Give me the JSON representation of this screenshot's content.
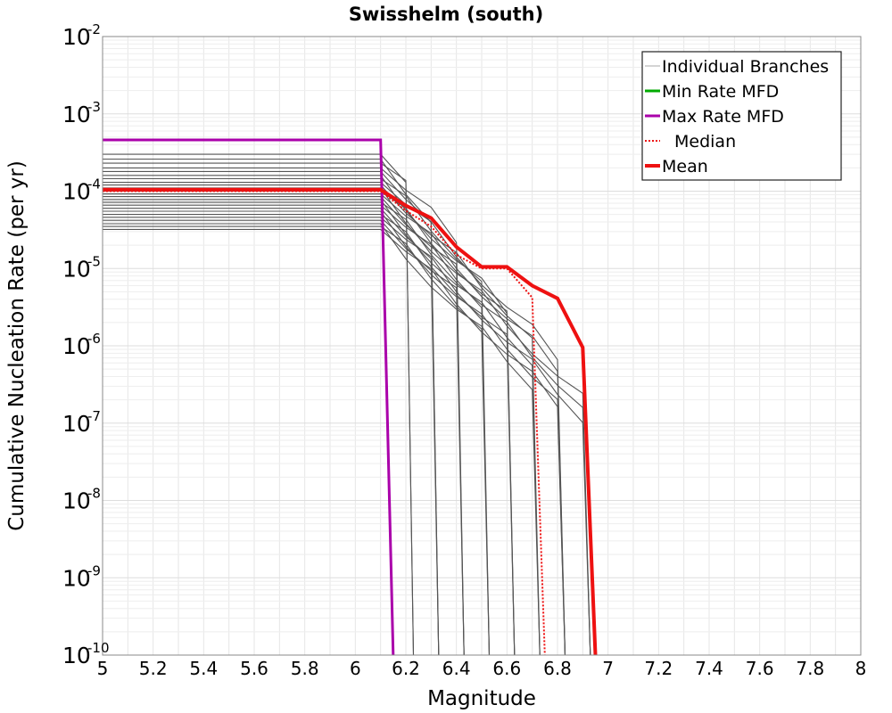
{
  "chart_data": {
    "type": "line",
    "title": "Swisshelm (south)",
    "xlabel": "Magnitude",
    "ylabel": "Cumulative Nucleation Rate (per yr)",
    "xlim": [
      5,
      8
    ],
    "ylim": [
      1e-10,
      0.01
    ],
    "yscale": "log",
    "grid": true,
    "legend_position": "top-right",
    "xticks": [
      "5",
      "5.2",
      "5.4",
      "5.6",
      "5.8",
      "6",
      "6.2",
      "6.4",
      "6.6",
      "6.8",
      "7",
      "7.2",
      "7.4",
      "7.6",
      "7.8",
      "8"
    ],
    "yticks": [
      {
        "base": "10",
        "exp": "-2"
      },
      {
        "base": "10",
        "exp": "-3"
      },
      {
        "base": "10",
        "exp": "-4"
      },
      {
        "base": "10",
        "exp": "-5"
      },
      {
        "base": "10",
        "exp": "-6"
      },
      {
        "base": "10",
        "exp": "-7"
      },
      {
        "base": "10",
        "exp": "-8"
      },
      {
        "base": "10",
        "exp": "-9"
      },
      {
        "base": "10",
        "exp": "-10"
      }
    ],
    "legend": [
      {
        "label": "Individual Branches",
        "color": "#aaaaaa",
        "style": "thin"
      },
      {
        "label": "Min Rate MFD",
        "color": "#00aa00",
        "style": "solid"
      },
      {
        "label": "Max Rate MFD",
        "color": "#aa00aa",
        "style": "solid"
      },
      {
        "label": "Median",
        "color": "#ee1111",
        "style": "dotted"
      },
      {
        "label": "Mean",
        "color": "#ee1111",
        "style": "thick"
      }
    ],
    "branch_color": "#555555",
    "branches": [
      {
        "rate": 0.0003,
        "mmax": 6.2
      },
      {
        "rate": 0.00026,
        "mmax": 6.3
      },
      {
        "rate": 0.00023,
        "mmax": 6.2
      },
      {
        "rate": 0.0002,
        "mmax": 6.4
      },
      {
        "rate": 0.00018,
        "mmax": 6.3
      },
      {
        "rate": 0.00016,
        "mmax": 6.6
      },
      {
        "rate": 0.000145,
        "mmax": 6.5
      },
      {
        "rate": 0.00013,
        "mmax": 6.8
      },
      {
        "rate": 0.00012,
        "mmax": 6.7
      },
      {
        "rate": 0.00011,
        "mmax": 6.9
      },
      {
        "rate": 0.0001,
        "mmax": 6.6
      },
      {
        "rate": 9.2e-05,
        "mmax": 6.8
      },
      {
        "rate": 8.5e-05,
        "mmax": 6.4
      },
      {
        "rate": 7.8e-05,
        "mmax": 6.7
      },
      {
        "rate": 7.2e-05,
        "mmax": 6.9
      },
      {
        "rate": 6.6e-05,
        "mmax": 6.5
      },
      {
        "rate": 6e-05,
        "mmax": 6.3
      },
      {
        "rate": 5.5e-05,
        "mmax": 6.8
      },
      {
        "rate": 5e-05,
        "mmax": 6.6
      },
      {
        "rate": 4.6e-05,
        "mmax": 6.9
      },
      {
        "rate": 4.2e-05,
        "mmax": 6.4
      },
      {
        "rate": 3.8e-05,
        "mmax": 6.7
      },
      {
        "rate": 3.5e-05,
        "mmax": 6.5
      },
      {
        "rate": 3.2e-05,
        "mmax": 6.8
      }
    ],
    "series": [
      {
        "name": "Max Rate MFD",
        "color": "#aa00aa",
        "x": [
          5,
          6.1,
          6.15
        ],
        "y": [
          0.00046,
          0.00046,
          1e-10
        ]
      },
      {
        "name": "Median",
        "color": "#ee1111",
        "x": [
          5,
          6.1,
          6.2,
          6.3,
          6.4,
          6.5,
          6.6,
          6.7,
          6.75
        ],
        "y": [
          0.0001,
          0.0001,
          5.6e-05,
          3.5e-05,
          1.5e-05,
          1e-05,
          1e-05,
          4.2e-06,
          1e-10
        ]
      },
      {
        "name": "Mean",
        "color": "#ee1111",
        "x": [
          5,
          6.1,
          6.2,
          6.3,
          6.4,
          6.5,
          6.6,
          6.7,
          6.8,
          6.9,
          6.95
        ],
        "y": [
          0.000105,
          0.000105,
          6.5e-05,
          4.5e-05,
          1.9e-05,
          1.05e-05,
          1.05e-05,
          6e-06,
          4.1e-06,
          9.5e-07,
          1e-10
        ]
      }
    ]
  }
}
